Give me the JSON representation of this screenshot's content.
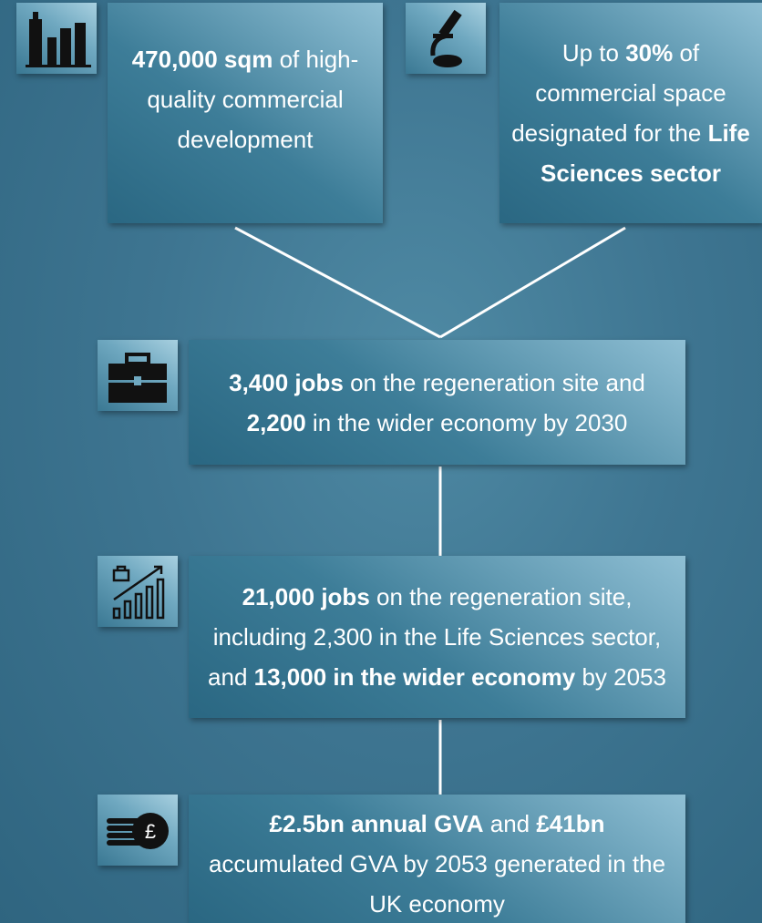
{
  "nodes": [
    {
      "parts": [
        {
          "text": "470,000 sqm",
          "bold": true
        },
        {
          "text": " of high-quality commercial development"
        }
      ]
    },
    {
      "parts": [
        {
          "text": "Up to "
        },
        {
          "text": "30%",
          "bold": true
        },
        {
          "text": " of commercial space designated for the "
        },
        {
          "text": "Life Sciences sector",
          "bold": true
        }
      ]
    },
    {
      "parts": [
        {
          "text": "3,400 jobs",
          "bold": true
        },
        {
          "text": " on the regeneration site and "
        },
        {
          "text": "2,200",
          "bold": true
        },
        {
          "text": " in the wider economy by 2030"
        }
      ]
    },
    {
      "parts": [
        {
          "text": "21,000 jobs",
          "bold": true
        },
        {
          "text": " on the regeneration site, including 2,300 in the Life Sciences sector, and "
        },
        {
          "text": "13,000 in the wider economy",
          "bold": true
        },
        {
          "text": " by 2053"
        }
      ]
    },
    {
      "parts": [
        {
          "text": "£2.5bn annual GVA",
          "bold": true
        },
        {
          "text": " and "
        },
        {
          "text": "£41bn",
          "bold": true
        },
        {
          "text": " accumulated GVA by 2053 generated in the UK economy"
        }
      ]
    }
  ]
}
